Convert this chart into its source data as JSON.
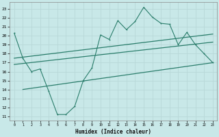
{
  "xlabel": "Humidex (Indice chaleur)",
  "line_color": "#2a7d6b",
  "bg_color": "#c8e8e8",
  "xlim": [
    -0.5,
    23.5
  ],
  "ylim": [
    10.5,
    23.8
  ],
  "xticks": [
    0,
    1,
    2,
    3,
    4,
    5,
    6,
    7,
    8,
    9,
    10,
    11,
    12,
    13,
    14,
    15,
    16,
    17,
    18,
    19,
    20,
    21,
    22,
    23
  ],
  "yticks": [
    11,
    12,
    13,
    14,
    15,
    16,
    17,
    18,
    19,
    20,
    21,
    22,
    23
  ],
  "curve_x": [
    0,
    1,
    2,
    3,
    4,
    5,
    6,
    7,
    8,
    9,
    10,
    11,
    12,
    13,
    14,
    15,
    16,
    17,
    18,
    19,
    20,
    21,
    22,
    23
  ],
  "curve_y": [
    20.3,
    17.5,
    16.0,
    16.3,
    13.8,
    11.2,
    11.2,
    12.1,
    15.0,
    16.4,
    20.1,
    19.6,
    21.7,
    20.7,
    21.6,
    23.2,
    22.1,
    21.4,
    21.3,
    19.0,
    20.4,
    19.0,
    18.0,
    17.0
  ],
  "upper_line_x": [
    0,
    23
  ],
  "upper_line_y": [
    17.5,
    20.2
  ],
  "mid_line_x": [
    0,
    23
  ],
  "mid_line_y": [
    16.8,
    19.3
  ],
  "lower_line_x": [
    1,
    23
  ],
  "lower_line_y": [
    14.0,
    17.0
  ]
}
